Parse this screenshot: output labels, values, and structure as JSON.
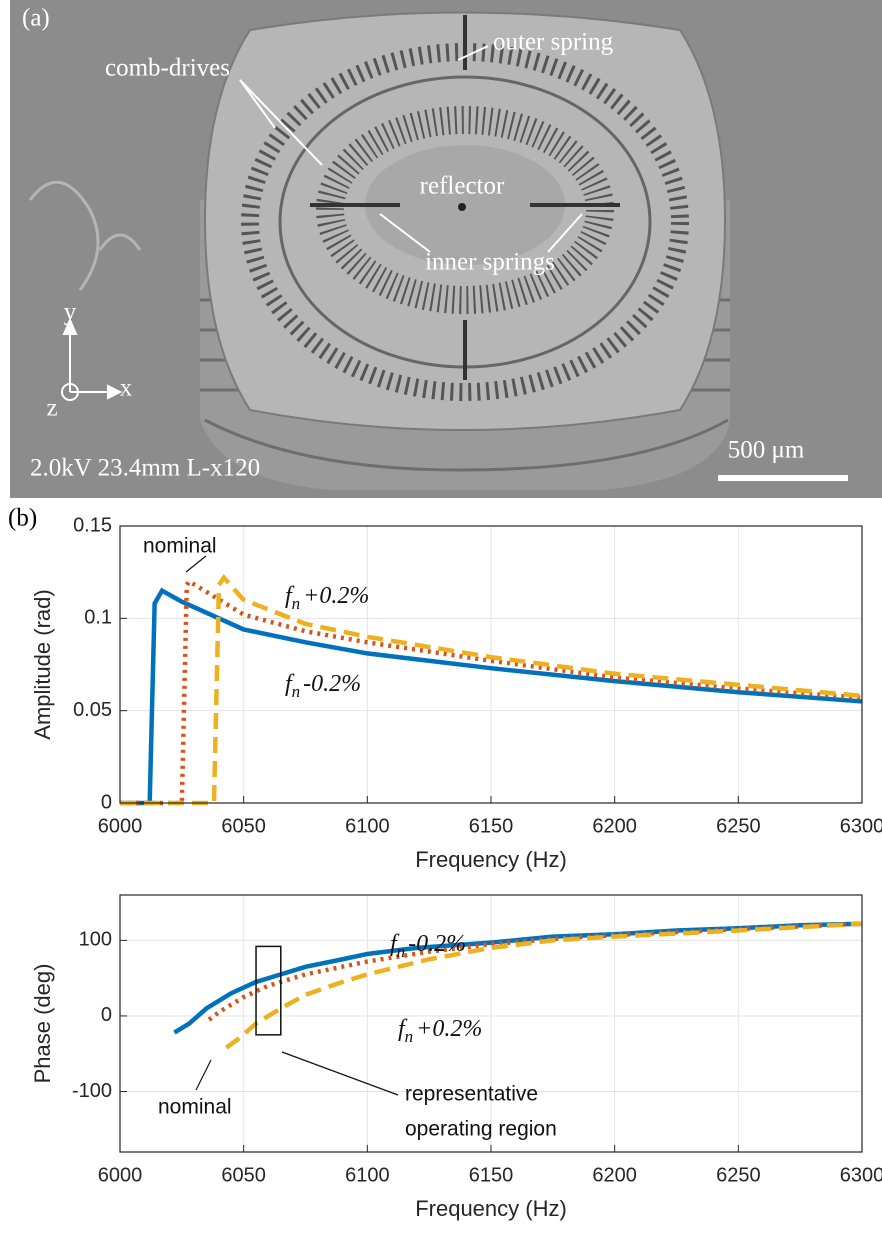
{
  "figure": {
    "panel_a": {
      "label": "(a)",
      "outer_spring": "outer spring",
      "comb_drives": "comb-drives",
      "reflector": "reflector",
      "inner_springs": "inner springs",
      "axis_y": "y",
      "axis_x": "x",
      "axis_z": "z",
      "info": "2.0kV 23.4mm L-x120",
      "scale_bar": "500 μm"
    },
    "panel_b": {
      "label": "(b)"
    }
  },
  "chart_data": [
    {
      "type": "line",
      "xlabel": "Frequency (Hz)",
      "ylabel": "Amplitude (rad)",
      "xlim": [
        6000,
        6300
      ],
      "xticks": [
        6000,
        6050,
        6100,
        6150,
        6200,
        6250,
        6300
      ],
      "ylim": [
        0,
        0.15
      ],
      "yticks": [
        0,
        0.05,
        0.1,
        0.15
      ],
      "grid": true,
      "series": [
        {
          "color": "#0072bd",
          "style": "solid",
          "x": [
            6000,
            6012,
            6014,
            6017,
            6025,
            6050,
            6075,
            6100,
            6150,
            6200,
            6250,
            6300
          ],
          "values": [
            0,
            0,
            0.108,
            0.115,
            0.109,
            0.094,
            0.087,
            0.081,
            0.073,
            0.066,
            0.06,
            0.055
          ]
        },
        {
          "color": "#d95319",
          "style": "dotted",
          "x": [
            6000,
            6025,
            6027,
            6028,
            6050,
            6075,
            6100,
            6150,
            6200,
            6250,
            6300
          ],
          "values": [
            0,
            0,
            0.118,
            0.12,
            0.102,
            0.093,
            0.087,
            0.077,
            0.068,
            0.062,
            0.057
          ]
        },
        {
          "color": "#edb120",
          "style": "dashed",
          "x": [
            6000,
            6038,
            6040,
            6042,
            6050,
            6075,
            6100,
            6150,
            6200,
            6250,
            6300
          ],
          "values": [
            0,
            0,
            0.118,
            0.122,
            0.11,
            0.097,
            0.09,
            0.079,
            0.07,
            0.064,
            0.058
          ]
        }
      ],
      "annotations": [
        {
          "text": "nominal"
        },
        {
          "main": "f",
          "sub": "n",
          "rest": "+0.2%"
        },
        {
          "main": "f",
          "sub": "n",
          "rest": "-0.2%"
        }
      ]
    },
    {
      "type": "line",
      "xlabel": "Frequency (Hz)",
      "ylabel": "Phase (deg)",
      "xlim": [
        6000,
        6300
      ],
      "xticks": [
        6000,
        6050,
        6100,
        6150,
        6200,
        6250,
        6300
      ],
      "ylim": [
        -180,
        160
      ],
      "yticks": [
        -100,
        0,
        100
      ],
      "grid": true,
      "series": [
        {
          "color": "#0072bd",
          "style": "solid",
          "x": [
            6022,
            6028,
            6035,
            6045,
            6055,
            6065,
            6075,
            6090,
            6100,
            6120,
            6150,
            6175,
            6200,
            6225,
            6250,
            6275,
            6300
          ],
          "values": [
            -22,
            -10,
            10,
            30,
            45,
            55,
            65,
            75,
            82,
            90,
            97,
            105,
            108,
            113,
            116,
            120,
            122
          ]
        },
        {
          "color": "#d95319",
          "style": "dotted",
          "x": [
            6036,
            6040,
            6050,
            6060,
            6075,
            6100,
            6125,
            6150,
            6175,
            6200,
            6250,
            6300
          ],
          "values": [
            -5,
            5,
            25,
            40,
            55,
            72,
            85,
            95,
            102,
            107,
            115,
            122
          ]
        },
        {
          "color": "#edb120",
          "style": "dashed",
          "x": [
            6043,
            6048,
            6055,
            6065,
            6075,
            6090,
            6100,
            6125,
            6150,
            6175,
            6200,
            6250,
            6300
          ],
          "values": [
            -42,
            -30,
            -10,
            10,
            28,
            45,
            55,
            75,
            90,
            100,
            105,
            113,
            122
          ]
        }
      ],
      "highlight_box": {
        "x": [
          6055,
          6065
        ],
        "y": [
          -25,
          92
        ]
      },
      "annotations": [
        {
          "main": "f",
          "sub": "n",
          "rest": "-0.2%"
        },
        {
          "main": "f",
          "sub": "n",
          "rest": "+0.2%"
        },
        {
          "text": "nominal"
        },
        {
          "text": "representative"
        },
        {
          "text": "operating region"
        }
      ]
    }
  ]
}
